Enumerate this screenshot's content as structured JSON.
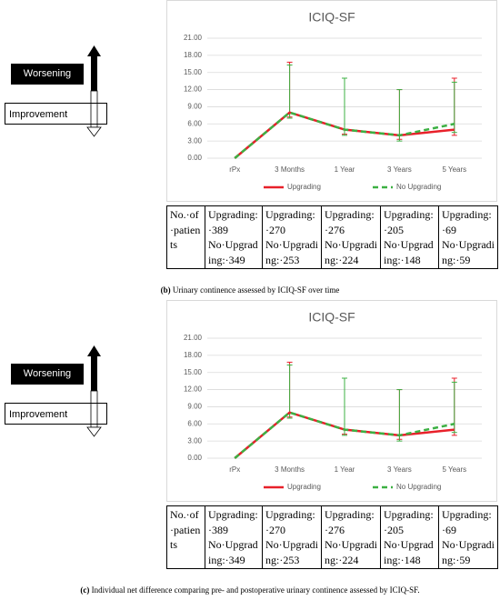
{
  "chart_data": [
    {
      "type": "line",
      "title": "ICIQ-SF",
      "categories": [
        "rPx",
        "3 Months",
        "1 Year",
        "3 Years",
        "5 Years"
      ],
      "series": [
        {
          "name": "Upgrading",
          "color": "#e8202a",
          "dashed": false,
          "values": [
            0,
            8,
            5,
            4,
            5
          ],
          "error_low": [
            null,
            7.2,
            4.2,
            3.3,
            4
          ],
          "error_high": [
            null,
            16.8,
            14,
            12,
            14
          ]
        },
        {
          "name": "No Upgrading",
          "color": "#3cb043",
          "dashed": true,
          "values": [
            0,
            8,
            5,
            4,
            6
          ],
          "error_low": [
            null,
            7,
            4,
            3,
            4.5
          ],
          "error_high": [
            null,
            16.3,
            14,
            12,
            13.3
          ]
        }
      ],
      "ylim": [
        0,
        21
      ],
      "yticks": [
        {
          "value": 0,
          "label": "0.00"
        },
        {
          "value": 3,
          "label": "3.00"
        },
        {
          "value": 6,
          "label": "6.00"
        },
        {
          "value": 9,
          "label": "9.00"
        },
        {
          "value": 12,
          "label": "12.00"
        },
        {
          "value": 15,
          "label": "15.00"
        },
        {
          "value": 18,
          "label": "18.00"
        },
        {
          "value": 21,
          "label": "21.00"
        }
      ],
      "grid": true,
      "legend": "bottom"
    },
    {
      "type": "line",
      "title": "ICIQ-SF",
      "categories": [
        "rPx",
        "3 Months",
        "1 Year",
        "3 Years",
        "5 Years"
      ],
      "series": [
        {
          "name": "Upgrading",
          "color": "#e8202a",
          "dashed": false,
          "values": [
            0,
            8,
            5,
            4,
            5
          ],
          "error_low": [
            null,
            7.2,
            4.2,
            3.3,
            4
          ],
          "error_high": [
            null,
            16.8,
            14,
            12,
            14
          ]
        },
        {
          "name": "No Upgrading",
          "color": "#3cb043",
          "dashed": true,
          "values": [
            0,
            8,
            5,
            4,
            6
          ],
          "error_low": [
            null,
            7,
            4,
            3,
            4.5
          ],
          "error_high": [
            null,
            16.3,
            14,
            12,
            13.3
          ]
        }
      ],
      "ylim": [
        0,
        21
      ],
      "yticks": [
        {
          "value": 0,
          "label": "0.00"
        },
        {
          "value": 3,
          "label": "3.00"
        },
        {
          "value": 6,
          "label": "6.00"
        },
        {
          "value": 9,
          "label": "9.00"
        },
        {
          "value": 12,
          "label": "12.00"
        },
        {
          "value": 15,
          "label": "15.00"
        },
        {
          "value": 18,
          "label": "18.00"
        },
        {
          "value": 21,
          "label": "21.00"
        }
      ],
      "grid": true,
      "legend": "bottom"
    }
  ],
  "panels": [
    {
      "side_labels": {
        "worsening": "Worsening",
        "improvement": "Improvement"
      },
      "table": {
        "header": "No.·of·patients",
        "cells": [
          [
            "Upgrading:·389",
            "No·Upgrading:·349"
          ],
          [
            "Upgrading:·270",
            "No·Upgrading:·253"
          ],
          [
            "Upgrading:·276",
            "No·Upgrading:·224"
          ],
          [
            "Upgrading:·205",
            "No·Upgrading:·148"
          ],
          [
            "Upgrading:·69",
            "No·Upgrading:·59"
          ]
        ]
      },
      "caption": {
        "label": "(b)",
        "text": "Urinary continence assessed by ICIQ-SF over time"
      }
    },
    {
      "side_labels": {
        "worsening": "Worsening",
        "improvement": "Improvement"
      },
      "table": {
        "header": "No.·of·patients",
        "cells": [
          [
            "Upgrading:·389",
            "No·Upgrading:·349"
          ],
          [
            "Upgrading:·270",
            "No·Upgrading:·253"
          ],
          [
            "Upgrading:·276",
            "No·Upgrading:·224"
          ],
          [
            "Upgrading:·205",
            "No·Upgrading:·148"
          ],
          [
            "Upgrading:·69",
            "No·Upgrading:·59"
          ]
        ]
      },
      "caption": {
        "label": "(c)",
        "text": "Individual net difference comparing pre- and postoperative urinary continence assessed by ICIQ-SF."
      }
    }
  ]
}
